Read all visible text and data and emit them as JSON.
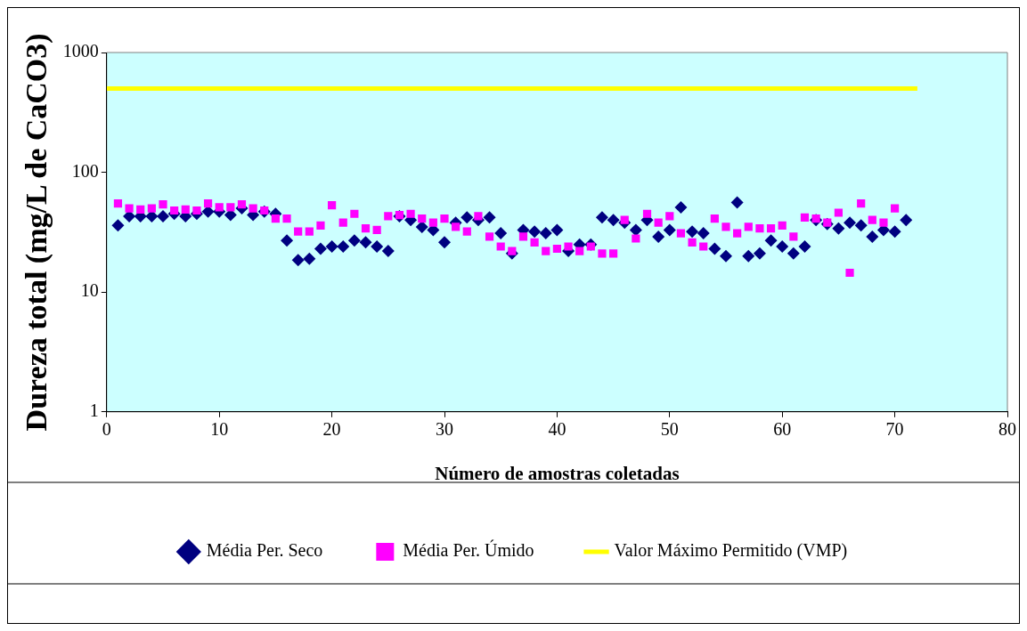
{
  "chart_data": {
    "type": "scatter",
    "xlabel": "Número de amostras coletadas",
    "ylabel": "Dureza total (mg/L de CaCO3)",
    "log": "y",
    "grid": false,
    "legend": "bottom",
    "xlim": [
      0,
      80
    ],
    "xticks": [
      0,
      10,
      20,
      30,
      40,
      50,
      60,
      70,
      80
    ],
    "ylim": [
      1,
      1000
    ],
    "yticks": [
      1,
      10,
      100,
      1000
    ],
    "series": [
      {
        "name": "Média Per. Seco",
        "color": "#000080",
        "marker": "diamond",
        "x": [
          1,
          2,
          3,
          4,
          5,
          6,
          7,
          8,
          9,
          10,
          11,
          12,
          13,
          14,
          15,
          16,
          17,
          18,
          19,
          20,
          21,
          22,
          23,
          24,
          25,
          26,
          27,
          28,
          29,
          30,
          31,
          32,
          33,
          34,
          35,
          36,
          37,
          38,
          39,
          40,
          41,
          42,
          43,
          44,
          45,
          46,
          47,
          48,
          49,
          50,
          51,
          52,
          53,
          54,
          55,
          56,
          57,
          58,
          59,
          60,
          61,
          62,
          63,
          64,
          65,
          66,
          67,
          68,
          69,
          70,
          71
        ],
        "values": [
          36,
          43,
          43,
          43,
          43,
          45,
          43,
          45,
          47,
          47,
          44,
          50,
          44,
          47,
          45,
          27,
          18.5,
          19,
          23,
          24,
          24,
          27,
          26,
          24,
          22,
          43,
          40,
          35,
          33,
          26,
          38,
          42,
          40,
          42,
          31,
          21,
          33,
          32,
          31,
          33,
          22,
          25,
          25,
          42,
          40,
          38,
          33,
          40,
          29,
          33,
          51,
          32,
          31,
          23,
          20,
          56,
          20,
          21,
          27,
          24,
          21,
          24,
          40,
          37,
          34,
          38,
          36,
          29,
          33,
          32,
          40
        ]
      },
      {
        "name": "Média Per. Úmido",
        "color": "#ff00ff",
        "marker": "square",
        "x": [
          1,
          2,
          3,
          4,
          5,
          6,
          7,
          8,
          9,
          10,
          11,
          12,
          13,
          14,
          15,
          16,
          17,
          18,
          19,
          20,
          21,
          22,
          23,
          24,
          25,
          26,
          27,
          28,
          29,
          30,
          31,
          32,
          33,
          34,
          35,
          36,
          37,
          38,
          39,
          40,
          41,
          42,
          43,
          44,
          45,
          46,
          47,
          48,
          49,
          50,
          51,
          52,
          53,
          54,
          55,
          56,
          57,
          58,
          59,
          60,
          61,
          62,
          63,
          64,
          65,
          66,
          67,
          68,
          69,
          70
        ],
        "values": [
          55,
          50,
          49,
          50,
          54,
          48,
          49,
          48,
          55,
          51,
          51,
          54,
          50,
          48,
          41,
          41,
          32,
          32,
          36,
          53,
          38,
          45,
          34,
          33,
          43,
          44,
          45,
          41,
          38,
          41,
          35,
          32,
          43,
          29,
          24,
          22,
          29,
          26,
          22,
          23,
          24,
          22,
          24,
          21,
          21,
          40,
          28,
          45,
          38,
          43,
          31,
          26,
          24,
          41,
          35,
          31,
          35,
          34,
          34,
          36,
          29,
          42,
          41,
          38,
          46,
          14.5,
          55,
          40,
          38,
          50
        ]
      },
      {
        "name": "Valor Máximo Permitido (VMP)",
        "type": "line",
        "color": "#ffff00",
        "marker": "none",
        "x": [
          0,
          72
        ],
        "values": [
          500,
          500
        ]
      }
    ]
  }
}
